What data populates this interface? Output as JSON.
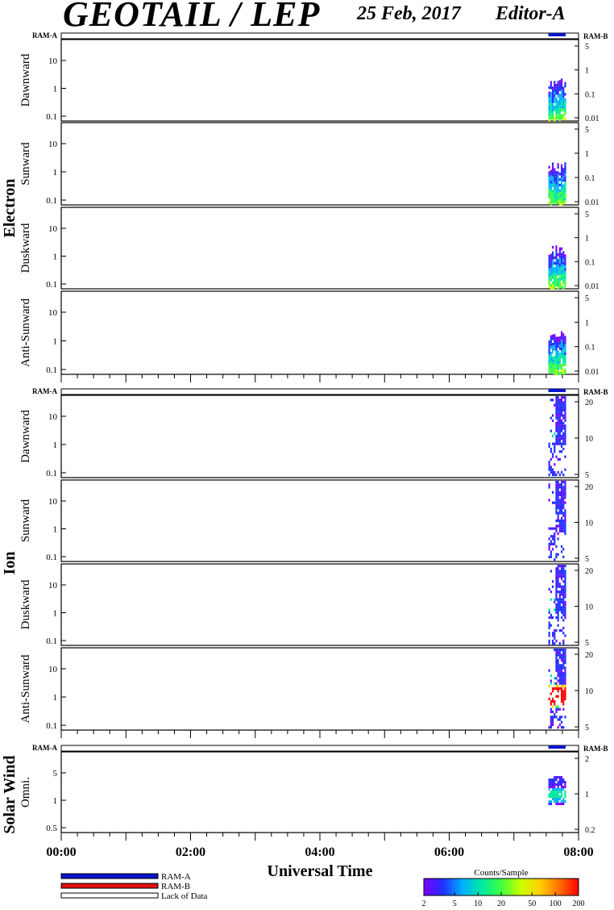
{
  "header": {
    "instrument": "GEOTAIL / LEP",
    "date": "25 Feb, 2017",
    "editor": "Editor-A"
  },
  "chart_data": {
    "type": "heatmap",
    "xlabel": "Universal Time",
    "x_ticks": [
      "00:00",
      "02:00",
      "04:00",
      "06:00",
      "08:00"
    ],
    "xlim": [
      "00:00",
      "08:00"
    ],
    "groups": [
      {
        "name": "Electron",
        "ram_a_label": "RAM-A",
        "ram_b_label": "RAM-B",
        "panels": [
          {
            "ylabel": "Dawnward",
            "yticks_left": [
              "10",
              "1",
              "0.1"
            ],
            "yticks_right": [
              "5",
              "1",
              "0.1",
              "0.01"
            ]
          },
          {
            "ylabel": "Sunward",
            "yticks_left": [
              "10",
              "1",
              "0.1"
            ],
            "yticks_right": [
              "5",
              "1",
              "0.1",
              "0.01"
            ]
          },
          {
            "ylabel": "Duskward",
            "yticks_left": [
              "10",
              "1",
              "0.1"
            ],
            "yticks_right": [
              "5",
              "1",
              "0.1",
              "0.01"
            ]
          },
          {
            "ylabel": "Anti-Sunward",
            "yticks_left": [
              "10",
              "1",
              "0.1"
            ],
            "yticks_right": [
              "5",
              "1",
              "0.1",
              "0.01"
            ]
          }
        ]
      },
      {
        "name": "Ion",
        "ram_a_label": "RAM-A",
        "ram_b_label": "RAM-B",
        "panels": [
          {
            "ylabel": "Dawnward",
            "yticks_left": [
              "10",
              "1",
              "0.1"
            ],
            "yticks_right": [
              "20",
              "10",
              "5"
            ]
          },
          {
            "ylabel": "Sunward",
            "yticks_left": [
              "10",
              "1",
              "0.1"
            ],
            "yticks_right": [
              "20",
              "10",
              "5"
            ]
          },
          {
            "ylabel": "Duskward",
            "yticks_left": [
              "10",
              "1",
              "0.1"
            ],
            "yticks_right": [
              "20",
              "10",
              "5"
            ]
          },
          {
            "ylabel": "Anti-Sunward",
            "yticks_left": [
              "10",
              "1",
              "0.1"
            ],
            "yticks_right": [
              "20",
              "10",
              "5"
            ]
          }
        ]
      },
      {
        "name": "Solar Wind",
        "ram_a_label": "RAM-A",
        "ram_b_label": "RAM-B",
        "panels": [
          {
            "ylabel": "Omni.",
            "yticks_left": [
              "5",
              "1",
              "0.5"
            ],
            "yticks_right": [
              "2",
              "1",
              "0.2"
            ]
          }
        ]
      }
    ],
    "data_interval": [
      "07:32",
      "07:48"
    ],
    "legend": {
      "items": [
        {
          "label": "RAM-A",
          "color": "#0a14c8"
        },
        {
          "label": "RAM-B",
          "color": "#e01010"
        },
        {
          "label": "Lack of Data",
          "color": "#ffffff"
        }
      ]
    },
    "colorbar": {
      "title": "Counts/Sample",
      "ticks": [
        "2",
        "5",
        "10",
        "20",
        "50",
        "100",
        "200"
      ],
      "colors": [
        "#7a00ff",
        "#2030ff",
        "#00b0ff",
        "#00e8a0",
        "#40ff40",
        "#c8ff00",
        "#ffd000",
        "#ff7000",
        "#ff0000"
      ]
    }
  }
}
